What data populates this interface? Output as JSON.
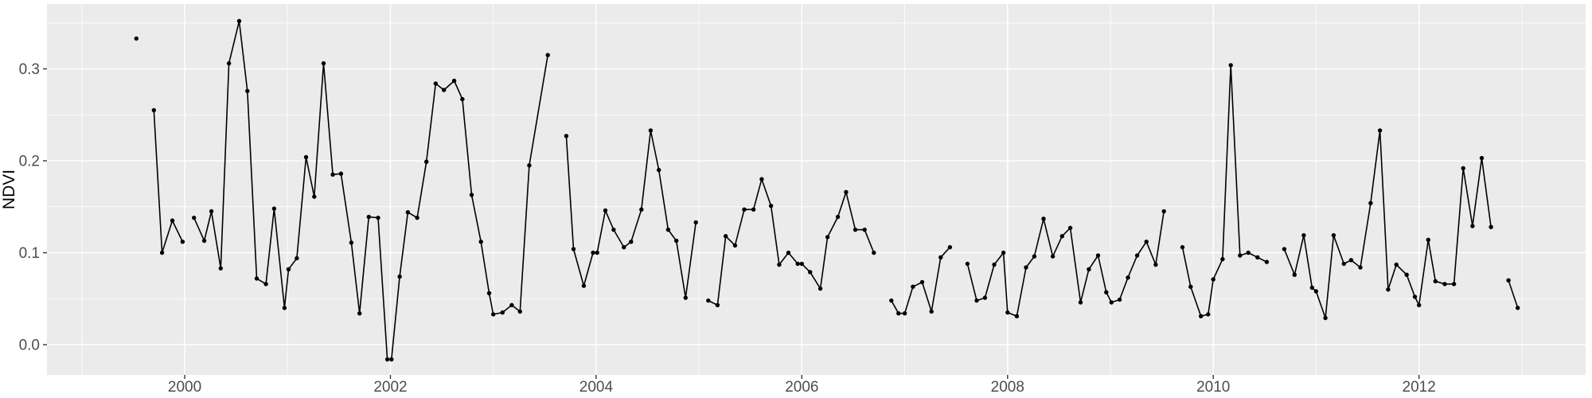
{
  "figure": {
    "kind": "ggplot-style time series plot",
    "background": "#FFFFFF",
    "panel_background": "#EBEBEB",
    "grid_color": "#FFFFFF",
    "line_color": "#000000",
    "point_color": "#000000",
    "tick_mark_color": "#333333",
    "tick_label_color": "#4D4D4D",
    "axis_title_color": "#000000"
  },
  "chart_data": {
    "type": "line",
    "title": "",
    "xlabel": "",
    "ylabel": "NDVI",
    "legend": "none",
    "grid": true,
    "xlim": [
      1998.661,
      2013.62
    ],
    "ylim": [
      -0.0329,
      0.3706
    ],
    "x_major_ticks": [
      2000,
      2002,
      2004,
      2006,
      2008,
      2010,
      2012
    ],
    "x_tick_labels": [
      "2000",
      "2002",
      "2004",
      "2006",
      "2008",
      "2010",
      "2012"
    ],
    "x_minor_ticks": [
      1999,
      2001,
      2003,
      2005,
      2007,
      2009,
      2011,
      2013
    ],
    "y_major_ticks": [
      0.0,
      0.1,
      0.2,
      0.3
    ],
    "y_tick_labels": [
      "0.0",
      "0.1",
      "0.2",
      "0.3"
    ],
    "y_minor_ticks": [
      0.05,
      0.15,
      0.25,
      0.35
    ],
    "series_name": "NDVI",
    "note": "segments are runs of consecutive observations; breaks between segments are data gaps",
    "segments": [
      [
        [
          1999.53,
          0.333
        ]
      ],
      [
        [
          1999.7,
          0.255
        ],
        [
          1999.78,
          0.1
        ],
        [
          1999.88,
          0.135
        ],
        [
          1999.98,
          0.112
        ]
      ],
      [
        [
          2000.09,
          0.138
        ],
        [
          2000.19,
          0.113
        ],
        [
          2000.26,
          0.145
        ],
        [
          2000.35,
          0.083
        ],
        [
          2000.43,
          0.306
        ],
        [
          2000.53,
          0.352
        ],
        [
          2000.61,
          0.276
        ],
        [
          2000.7,
          0.072
        ],
        [
          2000.79,
          0.066
        ],
        [
          2000.87,
          0.148
        ],
        [
          2000.97,
          0.04
        ],
        [
          2001.01,
          0.082
        ],
        [
          2001.09,
          0.094
        ],
        [
          2001.18,
          0.204
        ],
        [
          2001.26,
          0.161
        ],
        [
          2001.35,
          0.306
        ],
        [
          2001.44,
          0.185
        ],
        [
          2001.52,
          0.186
        ],
        [
          2001.62,
          0.111
        ],
        [
          2001.7,
          0.034
        ],
        [
          2001.79,
          0.139
        ],
        [
          2001.88,
          0.138
        ],
        [
          2001.97,
          -0.016
        ],
        [
          2002.01,
          -0.016
        ],
        [
          2002.09,
          0.074
        ],
        [
          2002.17,
          0.144
        ],
        [
          2002.26,
          0.138
        ],
        [
          2002.35,
          0.199
        ],
        [
          2002.44,
          0.284
        ],
        [
          2002.52,
          0.277
        ],
        [
          2002.62,
          0.287
        ],
        [
          2002.7,
          0.267
        ],
        [
          2002.79,
          0.163
        ],
        [
          2002.88,
          0.112
        ],
        [
          2002.96,
          0.056
        ],
        [
          2003.0,
          0.033
        ],
        [
          2003.09,
          0.035
        ],
        [
          2003.18,
          0.043
        ],
        [
          2003.26,
          0.036
        ],
        [
          2003.35,
          0.195
        ],
        [
          2003.53,
          0.315
        ]
      ],
      [
        [
          2003.71,
          0.227
        ],
        [
          2003.78,
          0.104
        ],
        [
          2003.88,
          0.064
        ],
        [
          2003.97,
          0.1
        ],
        [
          2004.01,
          0.1
        ],
        [
          2004.09,
          0.146
        ],
        [
          2004.17,
          0.125
        ],
        [
          2004.27,
          0.106
        ],
        [
          2004.34,
          0.112
        ],
        [
          2004.44,
          0.147
        ],
        [
          2004.53,
          0.233
        ],
        [
          2004.61,
          0.19
        ],
        [
          2004.7,
          0.125
        ],
        [
          2004.78,
          0.113
        ],
        [
          2004.87,
          0.051
        ],
        [
          2004.97,
          0.133
        ]
      ],
      [
        [
          2005.09,
          0.048
        ],
        [
          2005.18,
          0.043
        ],
        [
          2005.26,
          0.118
        ],
        [
          2005.35,
          0.108
        ],
        [
          2005.44,
          0.147
        ],
        [
          2005.53,
          0.147
        ],
        [
          2005.61,
          0.18
        ],
        [
          2005.7,
          0.151
        ],
        [
          2005.78,
          0.087
        ],
        [
          2005.87,
          0.1
        ],
        [
          2005.96,
          0.088
        ],
        [
          2006.0,
          0.088
        ],
        [
          2006.08,
          0.079
        ],
        [
          2006.18,
          0.061
        ],
        [
          2006.25,
          0.117
        ],
        [
          2006.35,
          0.139
        ],
        [
          2006.43,
          0.166
        ],
        [
          2006.52,
          0.125
        ],
        [
          2006.61,
          0.125
        ],
        [
          2006.7,
          0.1
        ]
      ],
      [
        [
          2006.87,
          0.048
        ],
        [
          2006.94,
          0.034
        ],
        [
          2007.0,
          0.034
        ],
        [
          2007.08,
          0.063
        ],
        [
          2007.17,
          0.068
        ],
        [
          2007.26,
          0.036
        ],
        [
          2007.35,
          0.095
        ],
        [
          2007.44,
          0.106
        ]
      ],
      [
        [
          2007.61,
          0.088
        ],
        [
          2007.7,
          0.048
        ],
        [
          2007.78,
          0.051
        ],
        [
          2007.87,
          0.087
        ],
        [
          2007.96,
          0.1
        ],
        [
          2008.0,
          0.035
        ],
        [
          2008.09,
          0.031
        ],
        [
          2008.18,
          0.084
        ],
        [
          2008.26,
          0.096
        ],
        [
          2008.35,
          0.137
        ],
        [
          2008.44,
          0.096
        ],
        [
          2008.53,
          0.118
        ],
        [
          2008.61,
          0.127
        ],
        [
          2008.71,
          0.046
        ],
        [
          2008.79,
          0.082
        ],
        [
          2008.88,
          0.097
        ],
        [
          2008.96,
          0.057
        ],
        [
          2009.01,
          0.046
        ],
        [
          2009.09,
          0.049
        ],
        [
          2009.17,
          0.073
        ],
        [
          2009.26,
          0.097
        ],
        [
          2009.35,
          0.112
        ],
        [
          2009.44,
          0.087
        ],
        [
          2009.52,
          0.145
        ]
      ],
      [
        [
          2009.7,
          0.106
        ],
        [
          2009.78,
          0.063
        ],
        [
          2009.88,
          0.031
        ],
        [
          2009.95,
          0.033
        ],
        [
          2010.0,
          0.071
        ],
        [
          2010.09,
          0.093
        ],
        [
          2010.17,
          0.304
        ],
        [
          2010.26,
          0.097
        ],
        [
          2010.34,
          0.1
        ],
        [
          2010.43,
          0.095
        ],
        [
          2010.52,
          0.09
        ]
      ],
      [
        [
          2010.69,
          0.104
        ],
        [
          2010.79,
          0.076
        ],
        [
          2010.88,
          0.119
        ],
        [
          2010.96,
          0.062
        ],
        [
          2011.0,
          0.058
        ],
        [
          2011.09,
          0.029
        ],
        [
          2011.17,
          0.119
        ],
        [
          2011.27,
          0.088
        ],
        [
          2011.34,
          0.092
        ],
        [
          2011.43,
          0.084
        ],
        [
          2011.53,
          0.154
        ],
        [
          2011.62,
          0.233
        ],
        [
          2011.7,
          0.06
        ],
        [
          2011.78,
          0.087
        ],
        [
          2011.88,
          0.076
        ],
        [
          2011.96,
          0.052
        ],
        [
          2012.0,
          0.043
        ],
        [
          2012.09,
          0.114
        ],
        [
          2012.16,
          0.069
        ],
        [
          2012.25,
          0.066
        ],
        [
          2012.34,
          0.066
        ],
        [
          2012.43,
          0.192
        ],
        [
          2012.52,
          0.129
        ],
        [
          2012.61,
          0.203
        ],
        [
          2012.7,
          0.128
        ]
      ],
      [
        [
          2012.87,
          0.07
        ],
        [
          2012.96,
          0.04
        ]
      ]
    ]
  }
}
